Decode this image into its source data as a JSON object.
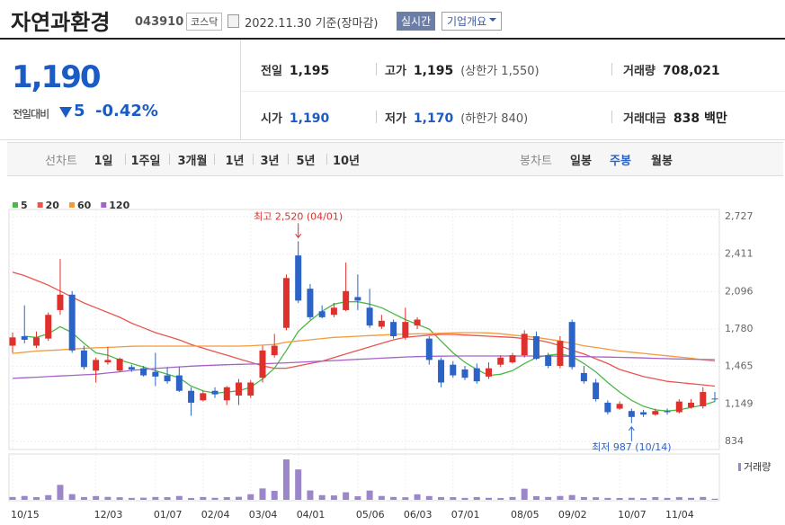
{
  "header": {
    "title": "자연과환경",
    "code": "043910",
    "market": "코스닥",
    "date": "2022.11.30 기준(장마감)",
    "realtime_button": "실시간",
    "company_button": "기업개요"
  },
  "price": {
    "current": "1,190",
    "change_label": "전일대비",
    "change": "5",
    "change_rate": "-0.42%",
    "color": "#1a5bc4"
  },
  "summary": {
    "rows": [
      [
        {
          "label": "전일",
          "value": "1,195",
          "color": "#222222"
        },
        {
          "label": "고가",
          "value": "1,195",
          "note": "(상한가 1,550)",
          "color": "#222222"
        },
        {
          "label": "거래량",
          "value": "708,021",
          "color": "#222222"
        }
      ],
      [
        {
          "label": "시가",
          "value": "1,190",
          "color": "#1a5bc4"
        },
        {
          "label": "저가",
          "value": "1,170",
          "note": "(하한가 840)",
          "color": "#1a5bc4"
        },
        {
          "label": "거래대금",
          "value": "838 백만",
          "color": "#222222"
        }
      ]
    ]
  },
  "tabs": {
    "line_label": "선차트",
    "line_periods": [
      "1일",
      "1주일",
      "3개월",
      "1년",
      "3년",
      "5년",
      "10년"
    ],
    "candle_label": "봉차트",
    "candle_periods": [
      "일봉",
      "주봉",
      "월봉"
    ],
    "selected_candle_index": 1
  },
  "chart_data": {
    "type": "candlestick",
    "categories": [
      "10/15",
      null,
      null,
      null,
      null,
      null,
      null,
      "12/03",
      null,
      null,
      null,
      null,
      "01/07",
      null,
      null,
      null,
      "02/04",
      null,
      null,
      null,
      "03/04",
      null,
      null,
      null,
      "04/01",
      null,
      null,
      null,
      null,
      "05/06",
      null,
      null,
      null,
      "06/03",
      null,
      null,
      null,
      "07/01",
      null,
      null,
      null,
      null,
      "08/05",
      null,
      null,
      null,
      "09/02",
      null,
      null,
      null,
      null,
      "10/07",
      null,
      null,
      null,
      "11/04",
      null,
      null,
      null,
      null
    ],
    "open": [
      1640,
      1720,
      1640,
      1700,
      1940,
      2070,
      1600,
      1430,
      1500,
      1430,
      1460,
      1450,
      1420,
      1390,
      1390,
      1260,
      1180,
      1260,
      1180,
      1220,
      1220,
      1370,
      1560,
      1790,
      2400,
      2120,
      1930,
      1900,
      1940,
      2050,
      1960,
      1800,
      1840,
      1710,
      1810,
      1700,
      1520,
      1480,
      1440,
      1450,
      1380,
      1480,
      1500,
      1560,
      1720,
      1560,
      1470,
      1840,
      1410,
      1330,
      1160,
      1110,
      1090,
      1080,
      1060,
      1090,
      1080,
      1120,
      1130,
      1195
    ],
    "high": [
      1750,
      1980,
      1760,
      1920,
      2370,
      2100,
      1640,
      1540,
      1630,
      1540,
      1480,
      1470,
      1580,
      1460,
      1460,
      1290,
      1260,
      1290,
      1300,
      1360,
      1350,
      1640,
      1740,
      2240,
      2520,
      2160,
      1980,
      2000,
      2340,
      2240,
      2120,
      1900,
      1860,
      1960,
      1880,
      1720,
      1540,
      1510,
      1470,
      1490,
      1500,
      1560,
      1580,
      1770,
      1760,
      1580,
      1720,
      1860,
      1470,
      1360,
      1180,
      1170,
      1110,
      1100,
      1110,
      1110,
      1190,
      1190,
      1290,
      1250
    ],
    "low": [
      1580,
      1660,
      1620,
      1680,
      1900,
      1580,
      1440,
      1330,
      1480,
      1420,
      1420,
      1380,
      1300,
      1320,
      1250,
      1050,
      1170,
      1200,
      1140,
      1140,
      1200,
      1330,
      1540,
      1770,
      2000,
      1860,
      1870,
      1880,
      1930,
      1940,
      1790,
      1780,
      1700,
      1690,
      1780,
      1480,
      1290,
      1370,
      1350,
      1320,
      1360,
      1460,
      1490,
      1540,
      1520,
      1450,
      1450,
      1440,
      1320,
      1170,
      1060,
      1100,
      987,
      1040,
      1050,
      1060,
      1070,
      1110,
      1110,
      1170
    ],
    "close": [
      1710,
      1690,
      1710,
      1900,
      2070,
      1600,
      1460,
      1520,
      1520,
      1530,
      1440,
      1390,
      1380,
      1340,
      1260,
      1160,
      1240,
      1230,
      1290,
      1330,
      1330,
      1600,
      1640,
      2210,
      2020,
      1880,
      1880,
      1960,
      2100,
      2020,
      1810,
      1850,
      1720,
      1840,
      1860,
      1520,
      1330,
      1390,
      1370,
      1340,
      1450,
      1540,
      1560,
      1740,
      1530,
      1470,
      1680,
      1460,
      1340,
      1190,
      1080,
      1150,
      1040,
      1060,
      1090,
      1080,
      1170,
      1160,
      1250,
      1190
    ],
    "up_color": "#e0302b",
    "down_color": "#2b63c6",
    "moving_averages": [
      {
        "name": "5",
        "color": "#4cb847",
        "values": [
          null,
          1720,
          1710,
          1740,
          1800,
          1750,
          1660,
          1580,
          1560,
          1520,
          1490,
          1460,
          1430,
          1400,
          1370,
          1300,
          1260,
          1240,
          1250,
          1260,
          1290,
          1360,
          1450,
          1600,
          1760,
          1850,
          1930,
          1990,
          2010,
          2010,
          1990,
          1960,
          1910,
          1860,
          1820,
          1780,
          1680,
          1580,
          1500,
          1440,
          1390,
          1400,
          1430,
          1490,
          1540,
          1560,
          1570,
          1550,
          1490,
          1420,
          1330,
          1250,
          1180,
          1130,
          1100,
          1090,
          1100,
          1120,
          1140,
          1170
        ]
      },
      {
        "name": "20",
        "color": "#e9554f",
        "values": [
          2260,
          2230,
          2190,
          2150,
          2100,
          2050,
          2000,
          1960,
          1920,
          1880,
          1830,
          1790,
          1750,
          1720,
          1690,
          1650,
          1620,
          1590,
          1560,
          1530,
          1500,
          1470,
          1450,
          1450,
          1470,
          1490,
          1510,
          1540,
          1570,
          1600,
          1630,
          1660,
          1690,
          1710,
          1720,
          1730,
          1735,
          1735,
          1730,
          1725,
          1720,
          1715,
          1710,
          1700,
          1690,
          1670,
          1640,
          1600,
          1570,
          1530,
          1490,
          1440,
          1410,
          1380,
          1360,
          1340,
          1330,
          1320,
          1310,
          1300
        ]
      },
      {
        "name": "60",
        "color": "#f39a3c",
        "values": [
          1575,
          1585,
          1595,
          1600,
          1605,
          1612,
          1618,
          1622,
          1626,
          1630,
          1635,
          1637,
          1637,
          1637,
          1637,
          1637,
          1637,
          1637,
          1637,
          1637,
          1640,
          1645,
          1650,
          1670,
          1680,
          1690,
          1700,
          1710,
          1715,
          1720,
          1725,
          1730,
          1735,
          1737,
          1740,
          1742,
          1745,
          1748,
          1750,
          1750,
          1748,
          1740,
          1730,
          1720,
          1710,
          1695,
          1680,
          1660,
          1640,
          1625,
          1610,
          1595,
          1585,
          1575,
          1565,
          1555,
          1545,
          1535,
          1520,
          1510
        ]
      },
      {
        "name": "120",
        "color": "#a463c8",
        "values": [
          1365,
          1370,
          1375,
          1380,
          1385,
          1390,
          1395,
          1400,
          1410,
          1420,
          1432,
          1440,
          1448,
          1455,
          1462,
          1468,
          1472,
          1476,
          1480,
          1483,
          1485,
          1488,
          1492,
          1496,
          1500,
          1505,
          1510,
          1515,
          1520,
          1525,
          1530,
          1535,
          1540,
          1545,
          1548,
          1550,
          1552,
          1553,
          1553,
          1553,
          1553,
          1553,
          1553,
          1553,
          1553,
          1553,
          1552,
          1550,
          1548,
          1546,
          1544,
          1542,
          1540,
          1537,
          1534,
          1531,
          1528,
          1526,
          1524,
          1523
        ]
      }
    ],
    "ylim": [
      834,
      2727
    ],
    "yticks": [
      {
        "value": 834,
        "label": "834"
      },
      {
        "value": 1149,
        "label": "1,149"
      },
      {
        "value": 1465,
        "label": "1,465"
      },
      {
        "value": 1780,
        "label": "1,780"
      },
      {
        "value": 2096,
        "label": "2,096"
      },
      {
        "value": 2411,
        "label": "2,411"
      },
      {
        "value": 2727,
        "label": "2,727"
      }
    ],
    "grid": true,
    "annotations": [
      {
        "text": "최고 2,520 (04/01)",
        "index": 24,
        "value": 2520,
        "color": "#d8312b",
        "side": "above"
      },
      {
        "text": "최저 987 (10/14)",
        "index": 52,
        "value": 987,
        "color": "#2b63c6",
        "side": "below"
      }
    ],
    "volume": {
      "name": "거래량",
      "color": "#9b86c9",
      "ylim": [
        0,
        46000000
      ],
      "values": [
        3100000,
        4200000,
        2900000,
        5100000,
        16300000,
        6200000,
        3000000,
        4100000,
        3200000,
        2800000,
        2100000,
        2300000,
        3100000,
        2900000,
        4200000,
        2000000,
        3100000,
        2200000,
        2900000,
        3300000,
        6100000,
        12400000,
        9800000,
        44000000,
        33100000,
        10200000,
        5100000,
        4800000,
        8200000,
        3900000,
        10100000,
        4200000,
        3100000,
        2800000,
        6000000,
        4100000,
        3000000,
        2900000,
        2100000,
        3000000,
        2200000,
        2000000,
        3100000,
        12100000,
        4000000,
        3100000,
        4200000,
        5200000,
        3000000,
        2800000,
        2100000,
        2000000,
        2200000,
        1900000,
        2900000,
        2100000,
        3000000,
        2200000,
        3100000,
        1200000
      ]
    }
  }
}
